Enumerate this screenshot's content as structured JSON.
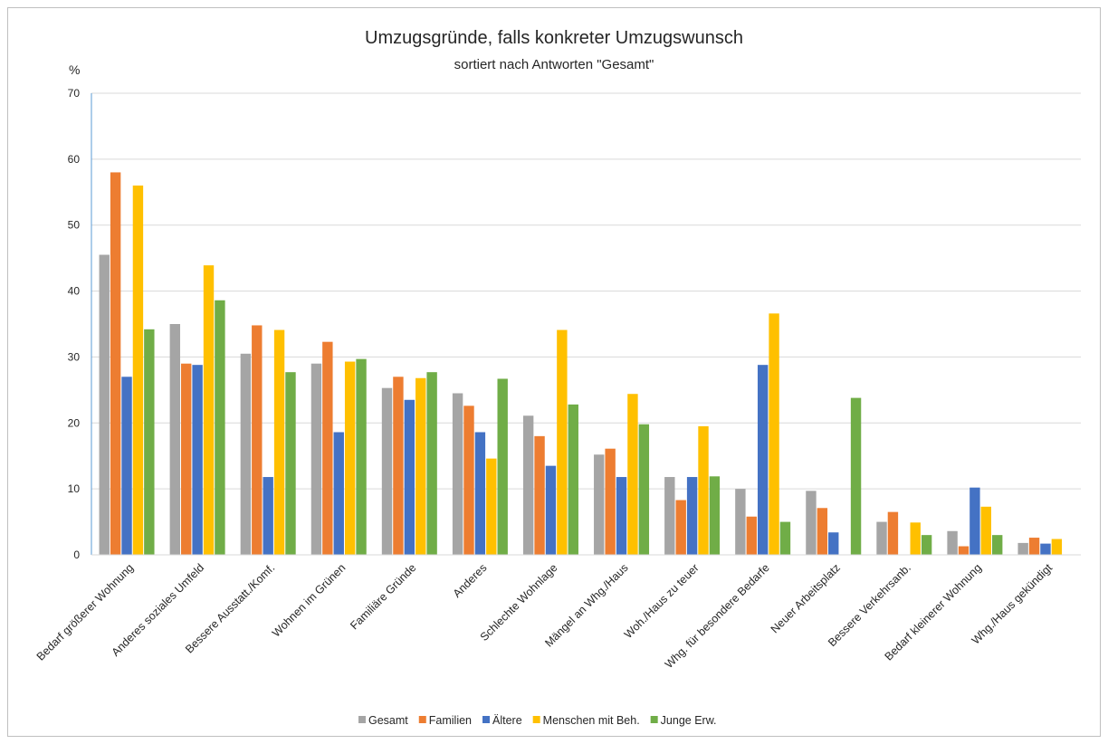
{
  "chart_data": {
    "type": "bar",
    "title": "Umzugsgründe, falls konkreter Umzugswunsch",
    "subtitle": "sortiert nach Antworten \"Gesamt\"",
    "ylabel": "%",
    "ylim": [
      0,
      70
    ],
    "yticks": [
      "0",
      "10",
      "20",
      "30",
      "40",
      "50",
      "60",
      "70"
    ],
    "grid": true,
    "legend_position": "bottom",
    "categories": [
      "Bedarf größerer Wohnung",
      "Anderes soziales Umfeld",
      "Bessere Ausstatt./Komf.",
      "Wohnen im Grünen",
      "Familiäre Gründe",
      "Anderes",
      "Schlechte Wohnlage",
      "Mängel an Whg./Haus",
      "Woh./Haus zu teuer",
      "Whg. für besondere Bedarfe",
      "Neuer Arbeitsplatz",
      "Bessere Verkehrsanb.",
      "Bedarf kleinerer Wohnung",
      "Whg./Haus  gekündigt"
    ],
    "series": [
      {
        "name": "Gesamt",
        "color": "#a5a5a5",
        "values": [
          45.5,
          35.0,
          30.5,
          29.0,
          25.3,
          24.5,
          21.1,
          15.2,
          11.8,
          10.0,
          9.7,
          5.0,
          3.6,
          1.8
        ]
      },
      {
        "name": "Familien",
        "color": "#ed7d31",
        "values": [
          58.0,
          29.0,
          34.8,
          32.3,
          27.0,
          22.6,
          18.0,
          16.1,
          8.3,
          5.8,
          7.1,
          6.5,
          1.3,
          2.6
        ]
      },
      {
        "name": "Ältere",
        "color": "#4472c4",
        "values": [
          27.0,
          28.8,
          11.8,
          18.6,
          23.5,
          18.6,
          13.5,
          11.8,
          11.8,
          28.8,
          3.4,
          0,
          10.2,
          1.7
        ]
      },
      {
        "name": "Menschen mit Beh.",
        "color": "#ffc000",
        "values": [
          56.0,
          43.9,
          34.1,
          29.3,
          26.8,
          14.6,
          34.1,
          24.4,
          19.5,
          36.6,
          0,
          4.9,
          7.3,
          2.4
        ]
      },
      {
        "name": "Junge Erw.",
        "color": "#70ad47",
        "values": [
          34.2,
          38.6,
          27.7,
          29.7,
          27.7,
          26.7,
          22.8,
          19.8,
          11.9,
          5.0,
          23.8,
          3.0,
          3.0,
          0
        ]
      }
    ]
  }
}
